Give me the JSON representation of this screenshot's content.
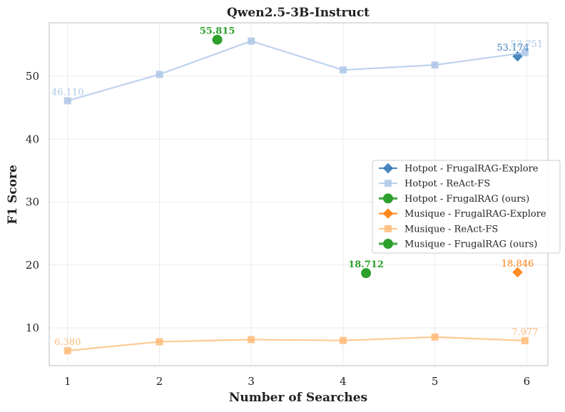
{
  "chart_data": {
    "type": "line",
    "title": "Qwen2.5-3B-Instruct",
    "xlabel": "Number of Searches",
    "ylabel": "F1 Score",
    "xlim": [
      0.8,
      6.23
    ],
    "ylim": [
      4.0,
      58.5
    ],
    "xticks": [
      1,
      2,
      3,
      4,
      5,
      6
    ],
    "yticks": [
      10,
      20,
      30,
      40,
      50
    ],
    "grid": true,
    "legend_position": "center-right",
    "series": [
      {
        "name": "Hotpot - FrugalRAG-Explore",
        "style": "diamond",
        "line": false,
        "color": "#3a7db8",
        "points": [
          {
            "x": 5.9,
            "y": 53.174
          }
        ],
        "labels": [
          {
            "text": "53.174",
            "x": 5.85,
            "y": 53.174,
            "bold": false
          }
        ]
      },
      {
        "name": "Hotpot - ReAct-FS",
        "style": "square-line",
        "line": true,
        "color": "#aec7e8",
        "points": [
          {
            "x": 1,
            "y": 46.11
          },
          {
            "x": 2,
            "y": 50.3
          },
          {
            "x": 3,
            "y": 55.6
          },
          {
            "x": 4,
            "y": 51.0
          },
          {
            "x": 5,
            "y": 51.8
          },
          {
            "x": 5.98,
            "y": 53.751
          }
        ],
        "labels": [
          {
            "text": "46.110",
            "x": 1,
            "y": 46.11,
            "bold": false
          },
          {
            "text": "53.751",
            "x": 6.0,
            "y": 53.751,
            "bold": false
          }
        ]
      },
      {
        "name": "Hotpot - FrugalRAG (ours)",
        "style": "circle",
        "line": false,
        "color": "#2ca02c",
        "points": [
          {
            "x": 2.63,
            "y": 55.815
          }
        ],
        "labels": [
          {
            "text": "55.815",
            "x": 2.63,
            "y": 55.815,
            "bold": true
          }
        ]
      },
      {
        "name": "Musique - FrugalRAG-Explore",
        "style": "diamond",
        "line": false,
        "color": "#ff7f0e",
        "points": [
          {
            "x": 5.9,
            "y": 18.846
          }
        ],
        "labels": [
          {
            "text": "18.846",
            "x": 5.9,
            "y": 18.846,
            "bold": false
          }
        ]
      },
      {
        "name": "Musique - ReAct-FS",
        "style": "square-line",
        "line": true,
        "color": "#ffbb78",
        "points": [
          {
            "x": 1,
            "y": 6.38
          },
          {
            "x": 2,
            "y": 7.8
          },
          {
            "x": 3,
            "y": 8.15
          },
          {
            "x": 4,
            "y": 8.0
          },
          {
            "x": 5,
            "y": 8.55
          },
          {
            "x": 5.98,
            "y": 7.977
          }
        ],
        "labels": [
          {
            "text": "6.380",
            "x": 1,
            "y": 6.38,
            "bold": false
          },
          {
            "text": "7.977",
            "x": 5.98,
            "y": 7.977,
            "bold": false
          }
        ]
      },
      {
        "name": "Musique - FrugalRAG (ours)",
        "style": "circle",
        "line": false,
        "color": "#2ca02c",
        "points": [
          {
            "x": 4.25,
            "y": 18.712
          }
        ],
        "labels": [
          {
            "text": "18.712",
            "x": 4.25,
            "y": 18.712,
            "bold": true
          }
        ]
      }
    ]
  }
}
